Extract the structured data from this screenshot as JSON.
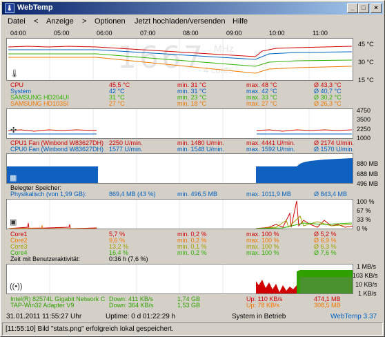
{
  "window": {
    "title": "WebTemp",
    "buttons": [
      "_",
      "□",
      "×"
    ]
  },
  "menu": [
    "Datei",
    "<",
    "Anzeige",
    ">",
    "Optionen",
    "Jetzt hochladen/versenden",
    "Hilfe"
  ],
  "hours": [
    "04:00",
    "05:00",
    "06:00",
    "07:00",
    "08:00",
    "09:00",
    "10:00",
    "11:00"
  ],
  "temp": {
    "scales": [
      "45 °C",
      "30 °C",
      "15 °C"
    ],
    "big": "1667",
    "unit": "MHz",
    "cores": "4 cores",
    "rows": [
      {
        "name": "CPU",
        "cur": "45,5 °C",
        "min": "min. 31 °C",
        "max": "max. 48 °C",
        "avg": "Ø 43,3 °C",
        "color": "#d00000"
      },
      {
        "name": "System",
        "cur": "42 °C",
        "min": "min. 31 °C",
        "max": "max. 42 °C",
        "avg": "Ø 40,7 °C",
        "color": "#0060c0"
      },
      {
        "name": "SAMSUNG HD204UI",
        "cur": "31 °C",
        "min": "min. 23 °C",
        "max": "max. 33 °C",
        "avg": "Ø 30,2 °C",
        "color": "#30b000"
      },
      {
        "name": "SAMSUNG HD103SI",
        "cur": "27 °C",
        "min": "min. 18 °C",
        "max": "max. 27 °C",
        "avg": "Ø 26,3 °C",
        "color": "#f07800"
      }
    ]
  },
  "fan": {
    "scales": [
      "4750",
      "3500",
      "2250",
      "1000"
    ],
    "rows": [
      {
        "name": "CPU1 Fan (Winbond W83627DH)",
        "cur": "2250 U/min.",
        "min": "min. 1480 U/min.",
        "max": "max. 4441 U/min.",
        "avg": "Ø 2174 U/min.",
        "color": "#d00000"
      },
      {
        "name": "CPU0 Fan (Winbond W83627DH)",
        "cur": "1577 U/min.",
        "min": "min. 1548 U/min.",
        "max": "max. 1592 U/min.",
        "avg": "Ø 1570 U/min.",
        "color": "#0060c0"
      }
    ]
  },
  "mem": {
    "scales": [
      "880 MB",
      "688 MB",
      "496 MB"
    ],
    "heading": "Belegter Speicher:",
    "row": {
      "name": "Physikalisch (von 1,99 GB):",
      "cur": "869,4 MB (43 %)",
      "min": "min. 496,5 MB",
      "max": "max. 1011,9 MB",
      "avg": "Ø 843,4 MB",
      "color": "#0060c0"
    }
  },
  "cpu": {
    "scales": [
      "100 %",
      "67 %",
      "33 %",
      "0 %"
    ],
    "rows": [
      {
        "name": "Core1",
        "cur": "5,7 %",
        "min": "min. 0,2 %",
        "max": "max. 100 %",
        "avg": "Ø 5,2 %",
        "color": "#d00000"
      },
      {
        "name": "Core2",
        "cur": "9,6 %",
        "min": "min. 0,2 %",
        "max": "max. 100 %",
        "avg": "Ø 6,9 %",
        "color": "#f07800"
      },
      {
        "name": "Core3",
        "cur": "13,2 %",
        "min": "min. 0,1 %",
        "max": "max. 100 %",
        "avg": "Ø 6,3 %",
        "color": "#a0a000"
      },
      {
        "name": "Core4",
        "cur": "16,4 %",
        "min": "min. 0,2 %",
        "max": "max. 100 %",
        "avg": "Ø 7,6 %",
        "color": "#30b000"
      }
    ],
    "activity": {
      "label": "Zeit mit Benutzeraktivität:",
      "value": "0:36 h (7,6 %)"
    }
  },
  "net": {
    "scales": [
      "1 MB/s",
      "103 KB/s",
      "10 KB/s",
      "1 KB/s"
    ],
    "rows": [
      {
        "name": "Intel(R) 82574L Gigabit Network C",
        "down": "Down: 411 KB/s",
        "total": "1,74 GB",
        "up": "Up: 110 KB/s",
        "upTotal": "474,1 MB",
        "color": "#30a000",
        "upColor": "#d00000"
      },
      {
        "name": "TAP-Win32 Adapter V9",
        "down": "Down: 364 KB/s",
        "total": "1,53 GB",
        "up": "Up: 78 KB/s",
        "upTotal": "308,5 MB",
        "color": "#30a000",
        "upColor": "#f07800"
      }
    ]
  },
  "status": {
    "datetime": "31.01.2011  11:55:27 Uhr",
    "uptime": "Uptime: 0 d 01:22:29 h",
    "state": "System in Betrieb",
    "version": "WebTemp 3.37"
  },
  "statusbar": "[11:55:10] Bild \"stats.png\" erfolgreich lokal gespeichert."
}
